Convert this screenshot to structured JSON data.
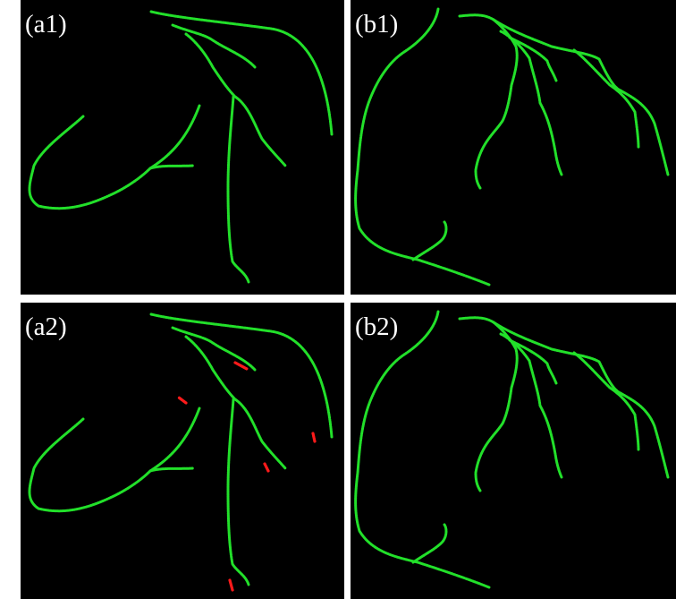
{
  "colors": {
    "vessel": "#22e02a",
    "tip": "#ff1a1a",
    "background": "#000000"
  },
  "panels": [
    {
      "id": "a1",
      "label": "(a1)"
    },
    {
      "id": "b1",
      "label": "(b1)"
    },
    {
      "id": "a2",
      "label": "(a2)"
    },
    {
      "id": "b2",
      "label": "(b2)"
    }
  ]
}
